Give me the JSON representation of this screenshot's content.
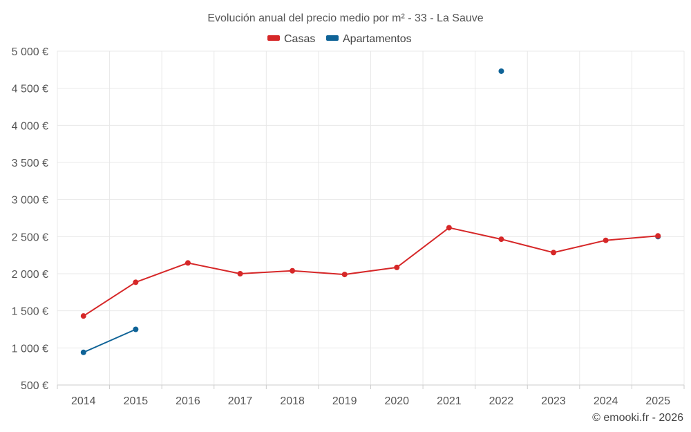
{
  "chart_data": {
    "type": "line",
    "title": "Evolución anual del precio medio por m² - 33 - La Sauve",
    "categories": [
      "2014",
      "2015",
      "2016",
      "2017",
      "2018",
      "2019",
      "2020",
      "2021",
      "2022",
      "2023",
      "2024",
      "2025"
    ],
    "ylim": [
      500,
      5000
    ],
    "yticks": [
      500,
      1000,
      1500,
      2000,
      2500,
      3000,
      3500,
      4000,
      4500,
      5000
    ],
    "ytick_labels": [
      "500 €",
      "1 000 €",
      "1 500 €",
      "2 000 €",
      "2 500 €",
      "3 000 €",
      "3 500 €",
      "4 000 €",
      "4 500 €",
      "5 000 €"
    ],
    "grid": true,
    "legend_position": "top-center",
    "series": [
      {
        "name": "Casas",
        "color": "#d62728",
        "values": [
          1430,
          1885,
          2145,
          2000,
          2040,
          1990,
          2085,
          2620,
          2465,
          2285,
          2450,
          2510
        ]
      },
      {
        "name": "Apartamentos",
        "color": "#0f6397",
        "values": [
          940,
          1250,
          null,
          null,
          null,
          null,
          null,
          null,
          4730,
          null,
          null,
          2500
        ]
      }
    ]
  },
  "credit": "© emooki.fr - 2026"
}
